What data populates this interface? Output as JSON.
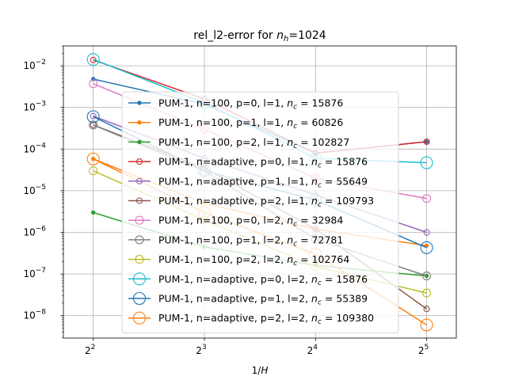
{
  "chart_data": {
    "type": "line",
    "title": "rel_l2-error for n_h=1024",
    "title_parts": {
      "prefix": "rel_l2-error for ",
      "var": "n",
      "sub": "h",
      "suffix": "=1024"
    },
    "xlabel": "1/H",
    "x_scale": "log2",
    "y_scale": "log10",
    "x": [
      4,
      8,
      16,
      32
    ],
    "x_tick_labels": [
      "2^2",
      "2^3",
      "2^4",
      "2^5"
    ],
    "xlim": [
      3.32,
      38.5
    ],
    "ylim": [
      2.9e-09,
      0.03
    ],
    "y_ticks": [
      1e-08,
      1e-07,
      1e-06,
      1e-05,
      0.0001,
      0.001,
      0.01
    ],
    "y_tick_labels": [
      {
        "base": "10",
        "exp": "−8"
      },
      {
        "base": "10",
        "exp": "−7"
      },
      {
        "base": "10",
        "exp": "−6"
      },
      {
        "base": "10",
        "exp": "−5"
      },
      {
        "base": "10",
        "exp": "−4"
      },
      {
        "base": "10",
        "exp": "−3"
      },
      {
        "base": "10",
        "exp": "−2"
      }
    ],
    "grid": true,
    "legend_position": "center",
    "series": [
      {
        "label": "PUM-1, n=100, p=0, l=1, ",
        "nc": "15876",
        "color": "#1f77b4",
        "marker": "point",
        "values": [
          0.0048,
          0.0012,
          8e-05,
          0.00015
        ]
      },
      {
        "label": "PUM-1, n=100, p=1, l=1, ",
        "nc": "60826",
        "color": "#ff7f0e",
        "marker": "point",
        "values": [
          5.8e-05,
          5e-06,
          1.2e-06,
          4.8e-07
        ]
      },
      {
        "label": "PUM-1, n=100, p=2, l=1, ",
        "nc": "102827",
        "color": "#2ca02c",
        "marker": "point",
        "values": [
          3e-06,
          4.5e-07,
          1.6e-07,
          9e-08
        ]
      },
      {
        "label": "PUM-1, n=adaptive, p=0, l=1, ",
        "nc": "15876",
        "color": "#d62728",
        "marker": "circle",
        "values": [
          0.0138,
          0.0016,
          8e-05,
          0.00015
        ]
      },
      {
        "label": "PUM-1, n=adaptive, p=1, l=1, ",
        "nc": "55649",
        "color": "#9467bd",
        "marker": "circle",
        "values": [
          0.00062,
          6e-05,
          8e-06,
          1e-06
        ]
      },
      {
        "label": "PUM-1, n=adaptive, p=2, l=1, ",
        "nc": "109793",
        "color": "#8c564b",
        "marker": "circle",
        "values": [
          0.00038,
          3.5e-05,
          1.2e-06,
          1.45e-08
        ]
      },
      {
        "label": "PUM-1, n=100, p=0, l=2, ",
        "nc": "32984",
        "color": "#e377c2",
        "marker": "circle_large",
        "values": [
          0.0037,
          0.0003,
          2e-05,
          6.5e-06
        ]
      },
      {
        "label": "PUM-1, n=100, p=1, l=2, ",
        "nc": "72781",
        "color": "#7f7f7f",
        "marker": "circle_large",
        "values": [
          0.00038,
          3e-05,
          7e-07,
          9e-08
        ]
      },
      {
        "label": "PUM-1, n=100, p=2, l=2, ",
        "nc": "102764",
        "color": "#bcbd22",
        "marker": "circle_large",
        "values": [
          3e-05,
          2e-06,
          1.5e-07,
          3.5e-08
        ]
      },
      {
        "label": "PUM-1, n=adaptive, p=0, l=2, ",
        "nc": "15876",
        "color": "#17becf",
        "marker": "circle_xl",
        "values": [
          0.0142,
          0.0013,
          6e-05,
          4.7e-05
        ]
      },
      {
        "label": "PUM-1, n=adaptive, p=1, l=2, ",
        "nc": "55389",
        "color": "#1f77b4",
        "marker": "circle_xl",
        "values": [
          0.0006,
          3e-05,
          6e-06,
          4.3e-07
        ]
      },
      {
        "label": "PUM-1, n=adaptive, p=2, l=2, ",
        "nc": "109380",
        "color": "#ff7f0e",
        "marker": "circle_xl",
        "values": [
          5.8e-05,
          3e-06,
          3e-07,
          6e-09
        ]
      }
    ]
  }
}
